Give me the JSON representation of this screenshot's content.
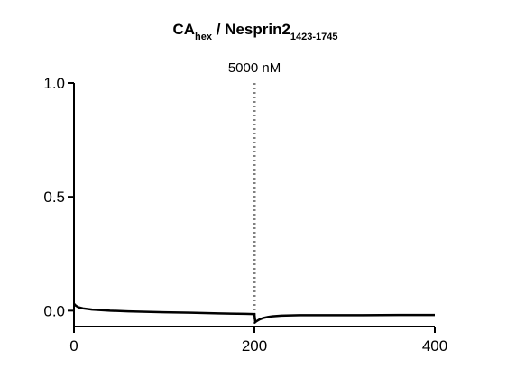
{
  "chart_data": {
    "type": "line",
    "title": [
      {
        "text": "CA"
      },
      {
        "text": "hex",
        "sub": true
      },
      {
        "text": " / Nesprin2"
      },
      {
        "text": "1423-1745",
        "sub": true
      }
    ],
    "annotations": [
      {
        "text": "5000 nM",
        "x": 200,
        "color": "#808080"
      }
    ],
    "series": [
      {
        "color": "#000000",
        "x": [
          0,
          2,
          5,
          10,
          20,
          40,
          60,
          80,
          100,
          130,
          160,
          190,
          199,
          200,
          201,
          203,
          206,
          210,
          215,
          220,
          230,
          250,
          280,
          320,
          360,
          400
        ],
        "values": [
          0.03,
          0.022,
          0.015,
          0.01,
          0.005,
          0.0,
          -0.003,
          -0.005,
          -0.007,
          -0.009,
          -0.012,
          -0.014,
          -0.015,
          -0.015,
          -0.05,
          -0.045,
          -0.038,
          -0.032,
          -0.028,
          -0.025,
          -0.022,
          -0.02,
          -0.02,
          -0.02,
          -0.019,
          -0.019
        ]
      }
    ],
    "xlim": [
      0,
      400
    ],
    "xticks": [
      0,
      200,
      400
    ],
    "ylim": [
      -0.07,
      1.0
    ],
    "yticks": [
      {
        "value": 0,
        "label": "0.0"
      },
      {
        "value": 0.5,
        "label": "0.5"
      },
      {
        "value": 1,
        "label": "1.0"
      }
    ]
  }
}
